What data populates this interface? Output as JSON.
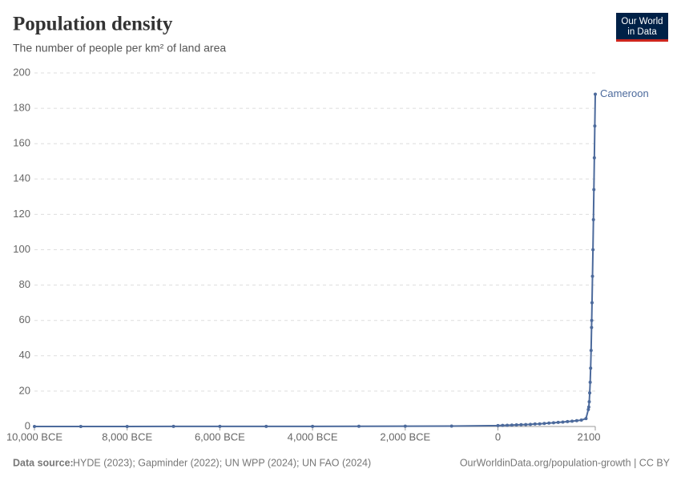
{
  "chart_data": {
    "type": "line",
    "title": "Population density",
    "subtitle": "The number of people per km² of land area",
    "logo": [
      "Our World",
      "in Data"
    ],
    "source_label": "Data source:",
    "source_text": "HYDE (2023); Gapminder (2022); UN WPP (2024); UN FAO (2024)",
    "footer_right": "OurWorldinData.org/population-growth | CC BY",
    "x": [
      -10000,
      -9000,
      -8000,
      -7000,
      -6000,
      -5000,
      -4000,
      -3000,
      -2000,
      -1000,
      0,
      100,
      200,
      300,
      400,
      500,
      600,
      700,
      800,
      900,
      1000,
      1100,
      1200,
      1300,
      1400,
      1500,
      1600,
      1700,
      1800,
      1900,
      1950,
      1960,
      1970,
      1980,
      1990,
      2000,
      2010,
      2020,
      2023,
      2030,
      2040,
      2050,
      2060,
      2070,
      2080,
      2090,
      2100
    ],
    "series": [
      {
        "name": "Cameroon",
        "color": "#4c6a9c",
        "values": [
          0.01,
          0.01,
          0.02,
          0.03,
          0.04,
          0.05,
          0.07,
          0.1,
          0.15,
          0.25,
          0.5,
          0.6,
          0.7,
          0.8,
          0.9,
          1.0,
          1.1,
          1.2,
          1.4,
          1.5,
          1.7,
          1.9,
          2.1,
          2.3,
          2.5,
          2.8,
          3.0,
          3.3,
          3.6,
          4.5,
          9.6,
          11,
          14,
          19,
          25,
          33,
          43,
          56,
          60,
          70,
          85,
          100,
          117,
          134,
          152,
          170,
          188
        ]
      }
    ],
    "xlim": [
      -10000,
      2100
    ],
    "xticks": [
      {
        "value": -10000,
        "label": "10,000 BCE"
      },
      {
        "value": -8000,
        "label": "8,000 BCE"
      },
      {
        "value": -6000,
        "label": "6,000 BCE"
      },
      {
        "value": -4000,
        "label": "4,000 BCE"
      },
      {
        "value": -2000,
        "label": "2,000 BCE"
      },
      0,
      2100
    ],
    "ylim": [
      0,
      200
    ],
    "yticks": [
      0,
      20,
      40,
      60,
      80,
      100,
      120,
      140,
      160,
      180,
      200
    ],
    "grid": true
  }
}
